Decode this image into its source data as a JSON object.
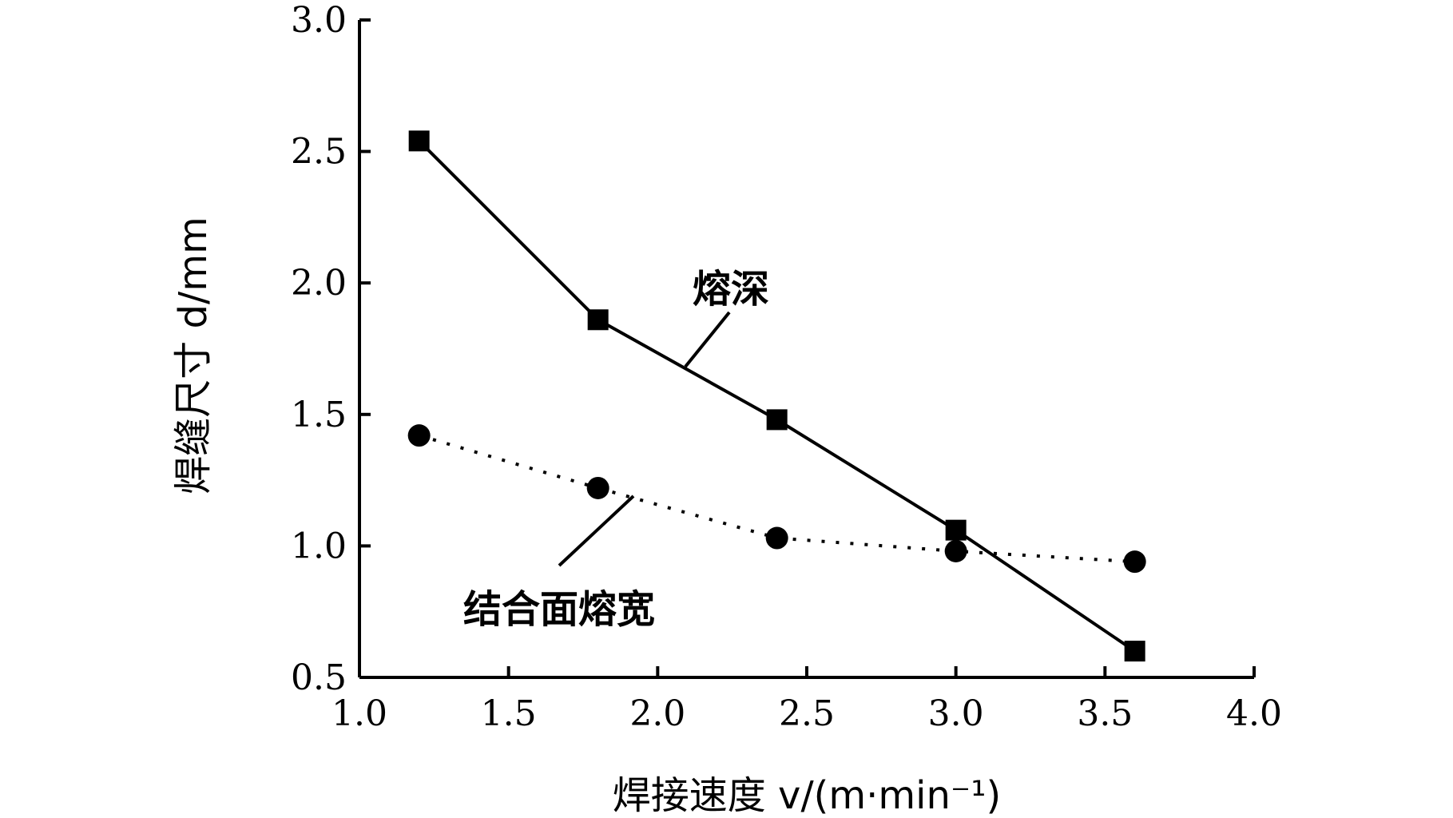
{
  "chart_data": {
    "type": "line",
    "xlabel": "焊接速度 v/(m·min⁻¹)",
    "ylabel": "焊缝尺寸 d/mm",
    "xlim": [
      1.0,
      4.0
    ],
    "ylim": [
      0.5,
      3.0
    ],
    "x_ticks": [
      "1.0",
      "1.5",
      "2.0",
      "2.5",
      "3.0",
      "3.5",
      "4.0"
    ],
    "y_ticks": [
      "0.5",
      "1.0",
      "1.5",
      "2.0",
      "2.5",
      "3.0"
    ],
    "grid": false,
    "legend": "none",
    "series": [
      {
        "name": "熔深",
        "marker": "square",
        "line_style": "solid",
        "color": "#000000",
        "x": [
          1.2,
          1.8,
          2.4,
          3.0,
          3.6
        ],
        "y": [
          2.54,
          1.86,
          1.48,
          1.06,
          0.6
        ]
      },
      {
        "name": "结合面熔宽",
        "marker": "circle",
        "line_style": "dotted",
        "color": "#000000",
        "x": [
          1.2,
          1.8,
          2.4,
          3.0,
          3.6
        ],
        "y": [
          1.42,
          1.22,
          1.03,
          0.98,
          0.94
        ]
      }
    ]
  }
}
